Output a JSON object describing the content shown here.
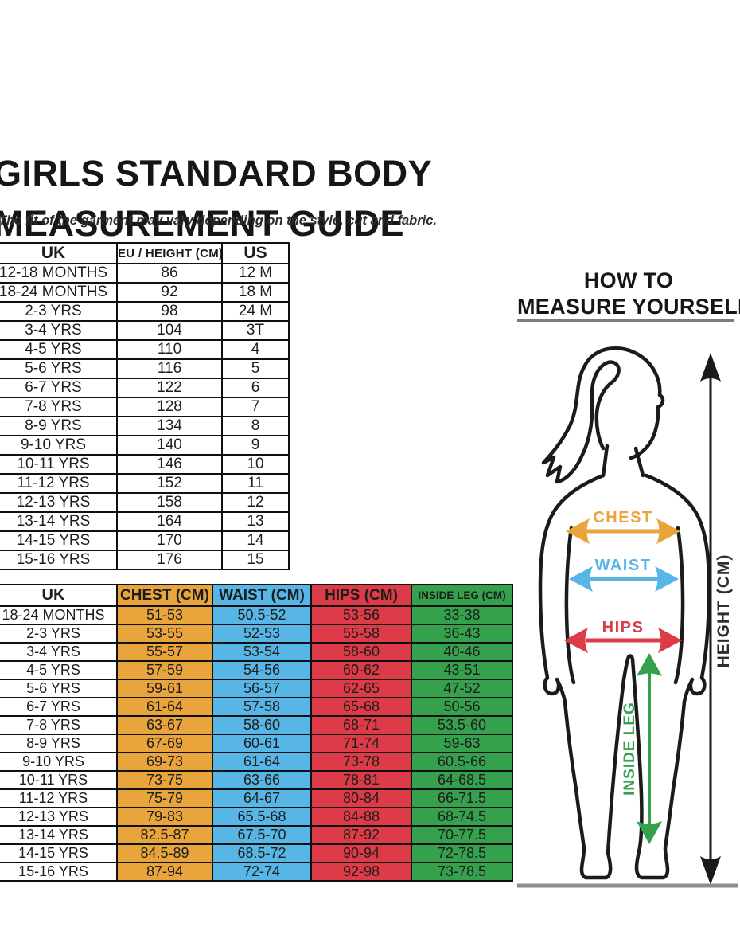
{
  "title": {
    "line1": "GIRLS STANDARD BODY",
    "line2": "MEASUREMENT GUIDE"
  },
  "subtitle": "The fit of the garment may vary depending on the style, cut and fabric.",
  "size_table": {
    "headers": [
      "UK",
      "EU / HEIGHT (CM)",
      "US"
    ],
    "rows": [
      [
        "12-18 MONTHS",
        "86",
        "12 M"
      ],
      [
        "18-24 MONTHS",
        "92",
        "18 M"
      ],
      [
        "2-3 YRS",
        "98",
        "24 M"
      ],
      [
        "3-4 YRS",
        "104",
        "3T"
      ],
      [
        "4-5 YRS",
        "110",
        "4"
      ],
      [
        "5-6 YRS",
        "116",
        "5"
      ],
      [
        "6-7 YRS",
        "122",
        "6"
      ],
      [
        "7-8 YRS",
        "128",
        "7"
      ],
      [
        "8-9 YRS",
        "134",
        "8"
      ],
      [
        "9-10 YRS",
        "140",
        "9"
      ],
      [
        "10-11 YRS",
        "146",
        "10"
      ],
      [
        "11-12 YRS",
        "152",
        "11"
      ],
      [
        "12-13 YRS",
        "158",
        "12"
      ],
      [
        "13-14 YRS",
        "164",
        "13"
      ],
      [
        "14-15 YRS",
        "170",
        "14"
      ],
      [
        "15-16 YRS",
        "176",
        "15"
      ]
    ]
  },
  "measurement_table": {
    "headers": [
      "UK",
      "CHEST (CM)",
      "WAIST (CM)",
      "HIPS (CM)",
      "INSIDE LEG (CM)"
    ],
    "rows": [
      [
        "18-24 MONTHS",
        "51-53",
        "50.5-52",
        "53-56",
        "33-38"
      ],
      [
        "2-3 YRS",
        "53-55",
        "52-53",
        "55-58",
        "36-43"
      ],
      [
        "3-4 YRS",
        "55-57",
        "53-54",
        "58-60",
        "40-46"
      ],
      [
        "4-5 YRS",
        "57-59",
        "54-56",
        "60-62",
        "43-51"
      ],
      [
        "5-6 YRS",
        "59-61",
        "56-57",
        "62-65",
        "47-52"
      ],
      [
        "6-7 YRS",
        "61-64",
        "57-58",
        "65-68",
        "50-56"
      ],
      [
        "7-8 YRS",
        "63-67",
        "58-60",
        "68-71",
        "53.5-60"
      ],
      [
        "8-9 YRS",
        "67-69",
        "60-61",
        "71-74",
        "59-63"
      ],
      [
        "9-10 YRS",
        "69-73",
        "61-64",
        "73-78",
        "60.5-66"
      ],
      [
        "10-11 YRS",
        "73-75",
        "63-66",
        "78-81",
        "64-68.5"
      ],
      [
        "11-12 YRS",
        "75-79",
        "64-67",
        "80-84",
        "66-71.5"
      ],
      [
        "12-13 YRS",
        "79-83",
        "65.5-68",
        "84-88",
        "68-74.5"
      ],
      [
        "13-14 YRS",
        "82.5-87",
        "67.5-70",
        "87-92",
        "70-77.5"
      ],
      [
        "14-15 YRS",
        "84.5-89",
        "68.5-72",
        "90-94",
        "72-78.5"
      ],
      [
        "15-16 YRS",
        "87-94",
        "72-74",
        "92-98",
        "73-78.5"
      ]
    ]
  },
  "how_to": {
    "line1": "HOW TO",
    "line2": "MEASURE YOURSELF"
  },
  "figure_labels": {
    "chest": "CHEST",
    "waist": "WAIST",
    "hips": "HIPS",
    "inside_leg": "INSIDE LEG",
    "height": "HEIGHT (CM)"
  },
  "colors": {
    "chest": "#E9A43C",
    "waist": "#57B6E6",
    "hips": "#DC3B47",
    "insideleg": "#35A14D",
    "heightarrow": "#1a1a1a",
    "ground": "#8e8e8e"
  }
}
